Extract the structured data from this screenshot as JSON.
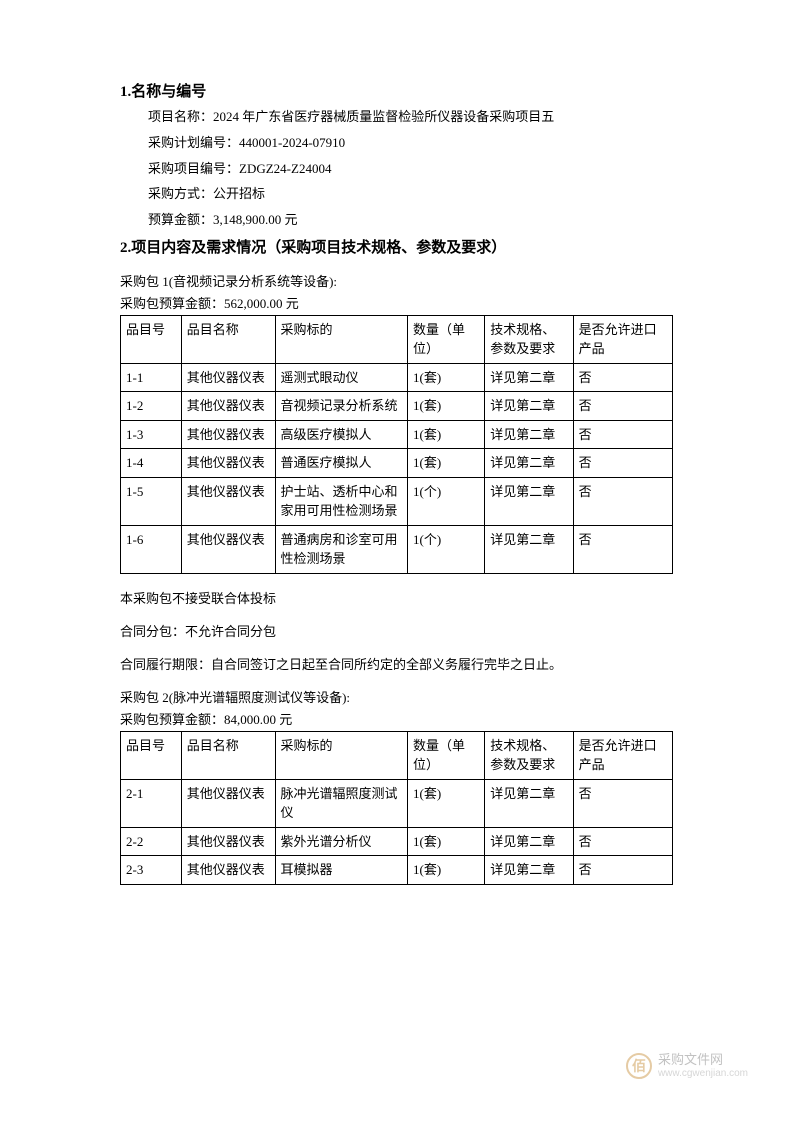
{
  "section1": {
    "title": "1.名称与编号",
    "project_name_label": "项目名称：",
    "project_name": "2024 年广东省医疗器械质量监督检验所仪器设备采购项目五",
    "plan_no_label": "采购计划编号：",
    "plan_no": "440001-2024-07910",
    "item_no_label": "采购项目编号：",
    "item_no": "ZDGZ24-Z24004",
    "method_label": "采购方式：",
    "method": "公开招标",
    "budget_label": "预算金额：",
    "budget": "3,148,900.00 元"
  },
  "section2": {
    "title": "2.项目内容及需求情况（采购项目技术规格、参数及要求）"
  },
  "package1": {
    "title": "采购包 1(音视频记录分析系统等设备):",
    "budget_label": "采购包预算金额：",
    "budget": "562,000.00 元",
    "headers": {
      "id": "品目号",
      "name": "品目名称",
      "target": "采购标的",
      "qty": "数量（单位）",
      "spec": "技术规格、参数及要求",
      "import": "是否允许进口产品"
    },
    "rows": [
      {
        "id": "1-1",
        "name": "其他仪器仪表",
        "target": "遥测式眼动仪",
        "qty": "1(套)",
        "spec": "详见第二章",
        "import": "否"
      },
      {
        "id": "1-2",
        "name": "其他仪器仪表",
        "target": "音视频记录分析系统",
        "qty": "1(套)",
        "spec": "详见第二章",
        "import": "否"
      },
      {
        "id": "1-3",
        "name": "其他仪器仪表",
        "target": "高级医疗模拟人",
        "qty": "1(套)",
        "spec": "详见第二章",
        "import": "否"
      },
      {
        "id": "1-4",
        "name": "其他仪器仪表",
        "target": "普通医疗模拟人",
        "qty": "1(套)",
        "spec": "详见第二章",
        "import": "否"
      },
      {
        "id": "1-5",
        "name": "其他仪器仪表",
        "target": "护士站、透析中心和家用可用性检测场景",
        "qty": "1(个)",
        "spec": "详见第二章",
        "import": "否"
      },
      {
        "id": "1-6",
        "name": "其他仪器仪表",
        "target": "普通病房和诊室可用性检测场景",
        "qty": "1(个)",
        "spec": "详见第二章",
        "import": "否"
      }
    ]
  },
  "notes": {
    "consortium": "本采购包不接受联合体投标",
    "subcontract": "合同分包：不允许合同分包",
    "period": "合同履行期限：自合同签订之日起至合同所约定的全部义务履行完毕之日止。"
  },
  "package2": {
    "title": "采购包 2(脉冲光谱辐照度测试仪等设备):",
    "budget_label": "采购包预算金额：",
    "budget": "84,000.00 元",
    "headers": {
      "id": "品目号",
      "name": "品目名称",
      "target": "采购标的",
      "qty": "数量（单位）",
      "spec": "技术规格、参数及要求",
      "import": "是否允许进口产品"
    },
    "rows": [
      {
        "id": "2-1",
        "name": "其他仪器仪表",
        "target": "脉冲光谱辐照度测试仪",
        "qty": "1(套)",
        "spec": "详见第二章",
        "import": "否"
      },
      {
        "id": "2-2",
        "name": "其他仪器仪表",
        "target": "紫外光谱分析仪",
        "qty": "1(套)",
        "spec": "详见第二章",
        "import": "否"
      },
      {
        "id": "2-3",
        "name": "其他仪器仪表",
        "target": "耳模拟器",
        "qty": "1(套)",
        "spec": "详见第二章",
        "import": "否"
      }
    ]
  },
  "watermark": {
    "icon": "佰",
    "text": "采购文件网",
    "url": "www.cgwenjian.com"
  }
}
